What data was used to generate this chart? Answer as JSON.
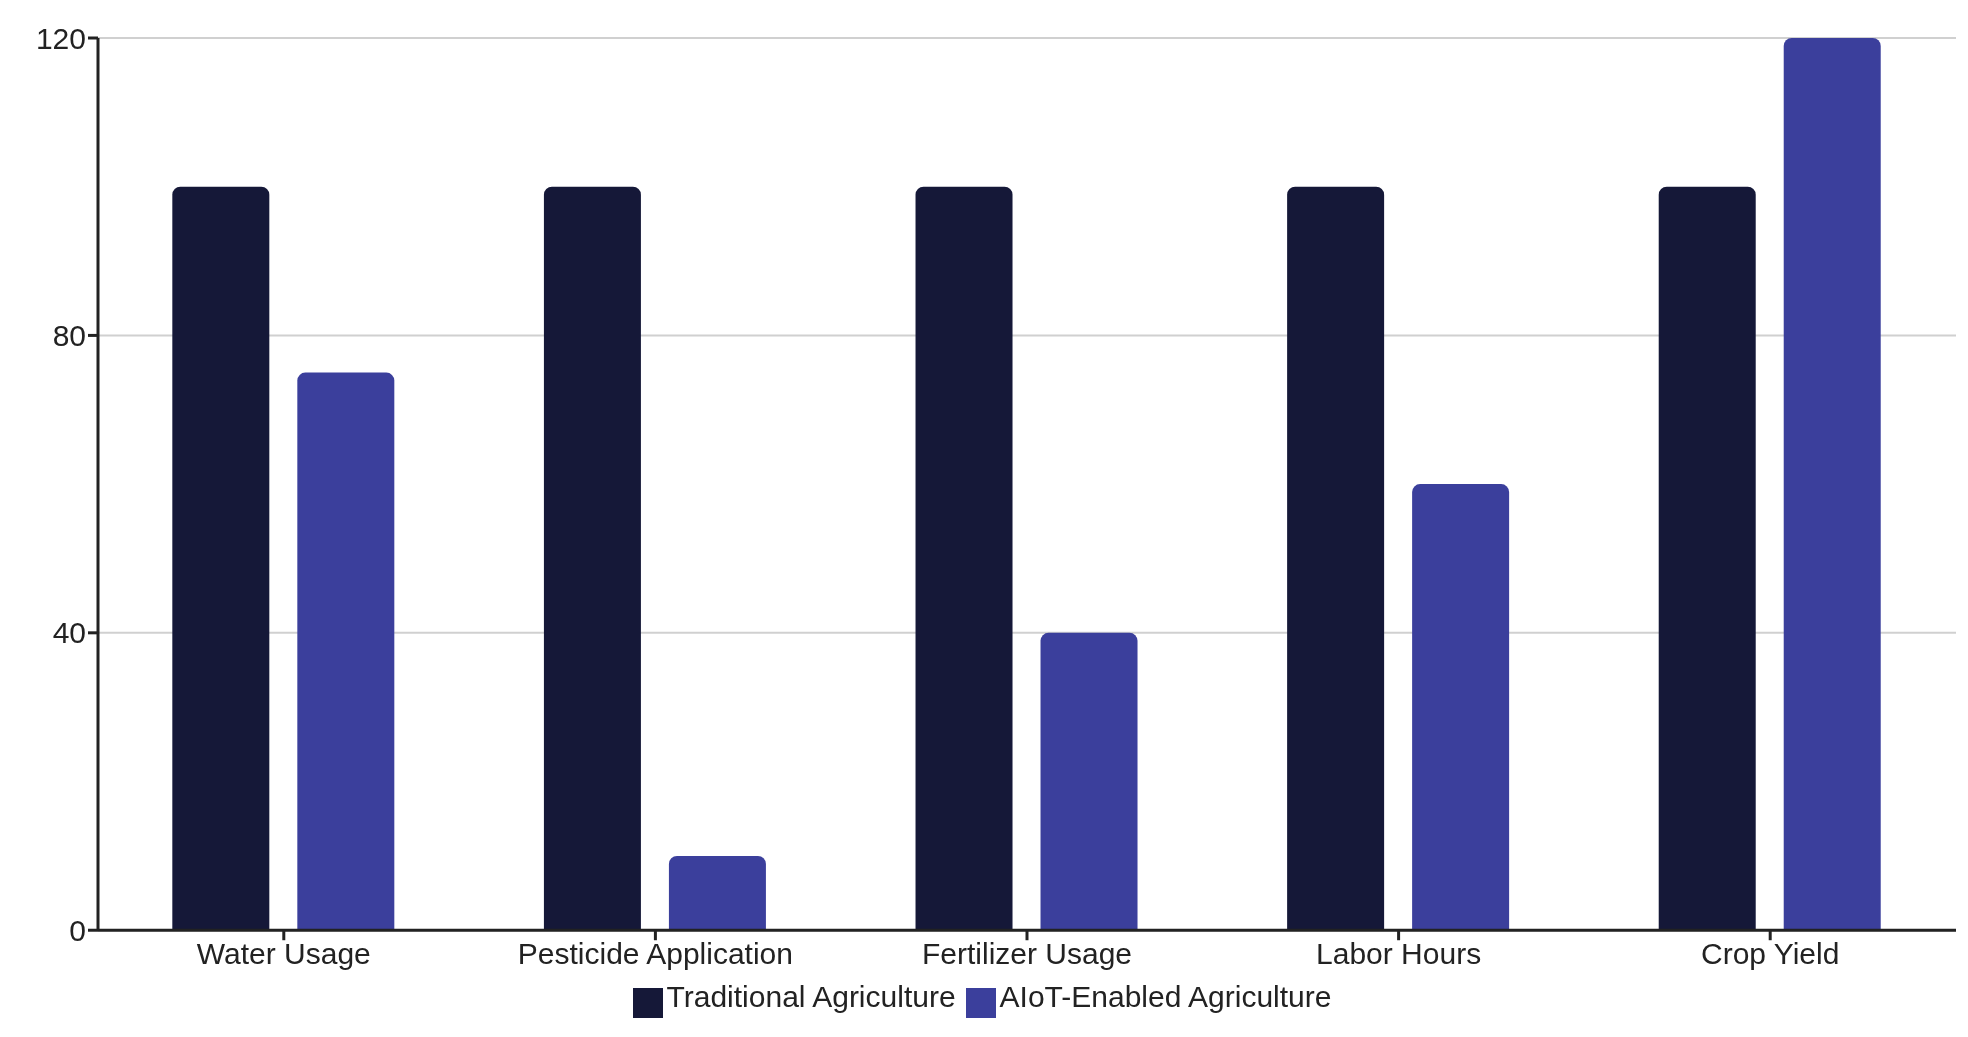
{
  "chart_data": {
    "type": "bar",
    "categories": [
      "Water Usage",
      "Pesticide Application",
      "Fertilizer Usage",
      "Labor Hours",
      "Crop Yield"
    ],
    "series": [
      {
        "name": "Traditional Agriculture",
        "color": "#151838",
        "values": [
          100,
          100,
          100,
          100,
          100
        ]
      },
      {
        "name": "AIoT-Enabled Agriculture",
        "color": "#3b3f9c",
        "values": [
          75,
          10,
          40,
          60,
          120
        ]
      }
    ],
    "ylim": [
      0,
      120
    ],
    "yticks": [
      0,
      40,
      80,
      120
    ],
    "grid": "y",
    "legend": "bottom"
  }
}
